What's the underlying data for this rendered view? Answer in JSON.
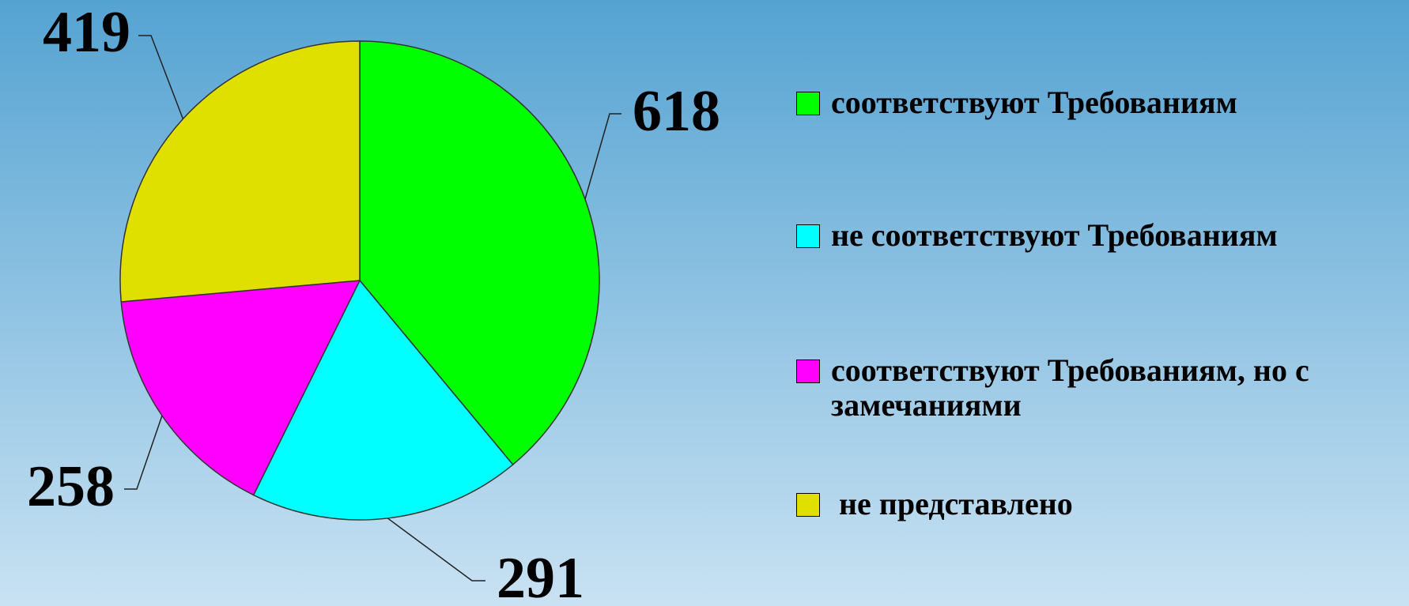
{
  "chart_data": {
    "type": "pie",
    "categories": [
      "соответствуют Требованиям",
      "не соответствуют Требованиям",
      "соответствуют Требованиям, но с замечаниями",
      " не представлено"
    ],
    "values": [
      618,
      291,
      258,
      419
    ],
    "colors": [
      "#00ff00",
      "#00ffff",
      "#ff00ff",
      "#e0e000"
    ],
    "legend": "right"
  }
}
